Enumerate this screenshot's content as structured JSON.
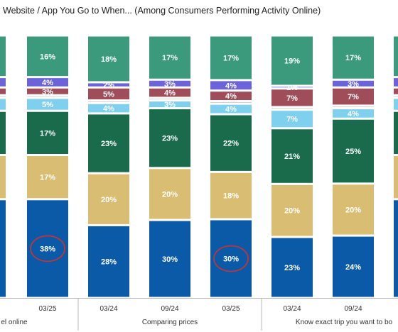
{
  "title": "Website / App You Go to When... (Among Consumers Performing Activity Online)",
  "chart_data": {
    "type": "bar",
    "stacked": true,
    "title": "Website / App You Go to When... (Among Consumers Performing Activity Online)",
    "segment_colors": [
      "#0b5aa8",
      "#d9bd72",
      "#1a6b4c",
      "#7fd0ef",
      "#c8bfc0",
      "#a04d5a",
      "#6c63d8",
      "#3b9a7b"
    ],
    "bars": [
      {
        "period": "",
        "group": "Travel online",
        "partial": "left",
        "values": [
          null,
          null,
          null,
          null,
          null,
          null,
          null,
          null
        ],
        "labels": [
          "",
          "",
          "",
          "",
          "",
          "",
          "",
          ""
        ]
      },
      {
        "period": "03/25",
        "group": "Travel online",
        "values": [
          38,
          17,
          17,
          5,
          1,
          3,
          4,
          16
        ],
        "labels": [
          "38%",
          "17%",
          "17%",
          "5%",
          "",
          "3%",
          "4%",
          "16%"
        ],
        "highlight": 0
      },
      {
        "period": "03/24",
        "group": "Comparing prices",
        "values": [
          28,
          20,
          23,
          4,
          1,
          5,
          2,
          18
        ],
        "labels": [
          "28%",
          "20%",
          "23%",
          "4%",
          "",
          "5%",
          "2%",
          "18%"
        ]
      },
      {
        "period": "09/24",
        "group": "Comparing prices",
        "values": [
          30,
          20,
          23,
          3,
          1,
          4,
          3,
          17
        ],
        "labels": [
          "30%",
          "20%",
          "23%",
          "3%",
          "",
          "4%",
          "3%",
          "17%"
        ]
      },
      {
        "period": "03/25",
        "group": "Comparing prices",
        "values": [
          30,
          18,
          22,
          4,
          1,
          4,
          4,
          17
        ],
        "labels": [
          "30%",
          "18%",
          "22%",
          "4%",
          "",
          "4%",
          "4%",
          "17%"
        ],
        "highlight": 0
      },
      {
        "period": "03/24",
        "group": "Know exact trip you want to book",
        "values": [
          23,
          20,
          21,
          7,
          1,
          7,
          1,
          19
        ],
        "labels": [
          "23%",
          "20%",
          "21%",
          "7%",
          "",
          "7%",
          "1%",
          "19%"
        ]
      },
      {
        "period": "09/24",
        "group": "Know exact trip you want to book",
        "values": [
          24,
          20,
          25,
          4,
          1,
          7,
          3,
          17
        ],
        "labels": [
          "24%",
          "20%",
          "25%",
          "4%",
          "",
          "7%",
          "3%",
          "17%"
        ]
      },
      {
        "period": "",
        "group": "Know exact trip you want to book",
        "partial": "right",
        "values": [
          null,
          null,
          null,
          null,
          null,
          null,
          null,
          null
        ],
        "labels": [
          "",
          "",
          "",
          "",
          "",
          "",
          "",
          ""
        ]
      }
    ],
    "groups": [
      {
        "label": "el online"
      },
      {
        "label": "Comparing prices"
      },
      {
        "label": "Know exact trip you want to bo"
      }
    ],
    "ylim": [
      0,
      100
    ],
    "legend": "none",
    "grid": false
  }
}
